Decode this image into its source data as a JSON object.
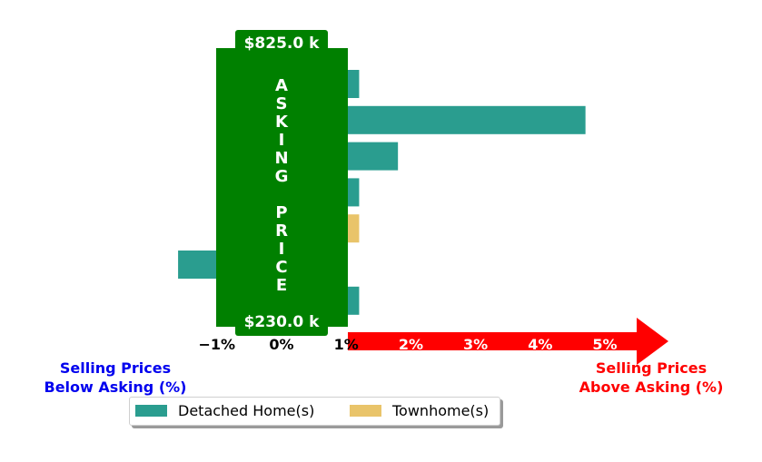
{
  "chart_data": {
    "type": "bar",
    "orientation": "horizontal",
    "series": [
      {
        "name": "Detached Home(s)",
        "color": "#2a9d8f"
      },
      {
        "name": "Townhome(s)",
        "color": "#e9c46a"
      }
    ],
    "bars": [
      {
        "series": 0,
        "value": 1.2
      },
      {
        "series": 0,
        "value": 4.7
      },
      {
        "series": 0,
        "value": 1.8
      },
      {
        "series": 0,
        "value": 1.2
      },
      {
        "series": 1,
        "value": 1.2
      },
      {
        "series": 0,
        "value": -1.6
      },
      {
        "series": 0,
        "value": 1.2
      }
    ],
    "xlim": [
      -1.4,
      5.8
    ],
    "xticks": [
      "−1%",
      "0%",
      "1%",
      "2%",
      "3%",
      "4%",
      "5%"
    ],
    "asking_box": {
      "label": "ASKING PRICE",
      "top_value": "$825.0 k",
      "bottom_value": "$230.0 k",
      "color": "#008000"
    },
    "arrow_color": "#ff0000",
    "left_annotation": [
      "Selling Prices",
      "Below Asking (%)"
    ],
    "right_annotation": [
      "Selling Prices",
      "Above Asking (%)"
    ],
    "legend_placement": "bottom-left"
  }
}
